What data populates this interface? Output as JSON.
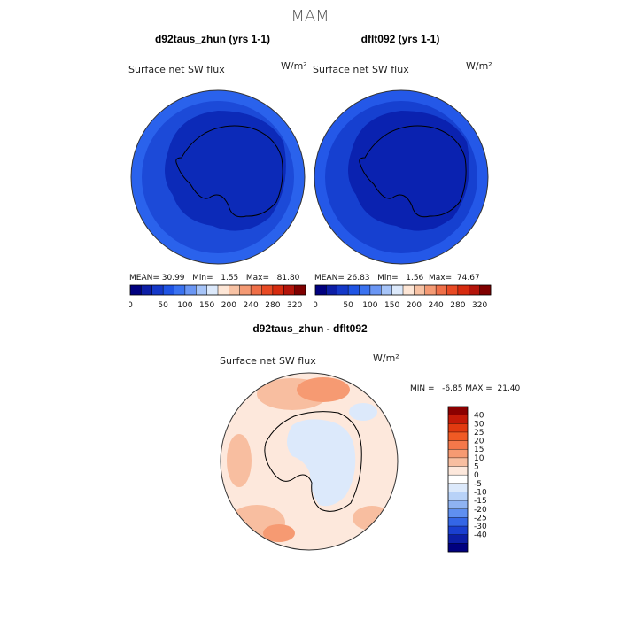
{
  "season_title": "MAM",
  "panels": {
    "left": {
      "title": "d92taus_zhun (yrs 1-1)",
      "field_label": "Surface net SW flux",
      "units": "W/m²",
      "mean_label": "MEAN=",
      "mean": "30.99",
      "min_label": "Min=",
      "min": "1.55",
      "max_label": "Max=",
      "max": "81.80"
    },
    "right": {
      "title": "dflt092 (yrs 1-1)",
      "field_label": "Surface net SW flux",
      "units": "W/m²",
      "mean_label": "MEAN=",
      "mean": "26.83",
      "min_label": "Min=",
      "min": "1.56",
      "max_label": "Max=",
      "max": "74.67"
    },
    "diff": {
      "title": "d92taus_zhun - dflt092",
      "field_label": "Surface net SW flux",
      "units": "W/m²",
      "minmax_text": "MIN =   -6.85 MAX =  21.40"
    }
  },
  "colorbar_top": {
    "tick_labels": [
      "0",
      "50",
      "100",
      "150",
      "200",
      "240",
      "280",
      "320"
    ],
    "colors": [
      "#00007f",
      "#0c1ea6",
      "#1438c8",
      "#1f54e4",
      "#3a72f0",
      "#6a96f4",
      "#a6c4f8",
      "#dce9fb",
      "#fde6d6",
      "#f7c2a4",
      "#f49a74",
      "#ef6f48",
      "#e84a24",
      "#d62b0f",
      "#b3140a",
      "#7f0000"
    ]
  },
  "colorbar_diff": {
    "tick_labels": [
      "40",
      "30",
      "25",
      "20",
      "15",
      "10",
      "5",
      "0",
      "-5",
      "-10",
      "-15",
      "-20",
      "-25",
      "-30",
      "-40"
    ],
    "colors": [
      "#8b0000",
      "#c41a08",
      "#e23a10",
      "#f05a24",
      "#f4784a",
      "#f69a72",
      "#f8bea0",
      "#fde8dc",
      "#ffffff",
      "#dce9fb",
      "#b8d2f8",
      "#8fb3f2",
      "#5f8ff0",
      "#3466e6",
      "#1a3fd0",
      "#0c1ea6",
      "#00007f"
    ]
  },
  "chart_data": [
    {
      "type": "heatmap",
      "title": "d92taus_zhun (yrs 1-1)",
      "subtitle": "Surface net SW flux",
      "units": "W/m²",
      "mean": 30.99,
      "min": 1.55,
      "max": 81.8,
      "ylim": [
        0,
        320
      ]
    },
    {
      "type": "heatmap",
      "title": "dflt092 (yrs 1-1)",
      "subtitle": "Surface net SW flux",
      "units": "W/m²",
      "mean": 26.83,
      "min": 1.56,
      "max": 74.67,
      "ylim": [
        0,
        320
      ]
    },
    {
      "type": "heatmap",
      "title": "d92taus_zhun - dflt092",
      "subtitle": "Surface net SW flux",
      "units": "W/m²",
      "min": -6.85,
      "max": 21.4,
      "ylim": [
        -40,
        40
      ]
    }
  ]
}
